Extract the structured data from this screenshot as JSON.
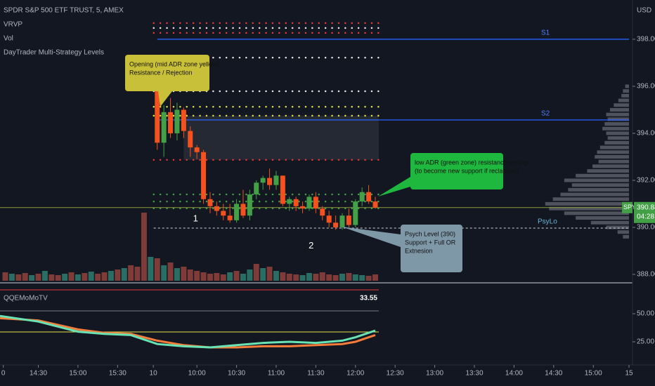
{
  "chart_data": {
    "type": "candlestick",
    "title": "SPDR S&P 500 ETF TRUST, 5, AMEX",
    "indicators": [
      "VRVP",
      "Vol",
      "DayTrader Multi-Strategy Levels"
    ],
    "currency": "USD",
    "xlim": [
      -23.8,
      71.4
    ],
    "xticks": [
      {
        "value": -23.3,
        "label": "0"
      },
      {
        "value": -18,
        "label": "14:30"
      },
      {
        "value": -12,
        "label": "15:00"
      },
      {
        "value": -6,
        "label": "15:30"
      },
      {
        "value": -0.6,
        "label": "10"
      },
      {
        "value": 6,
        "label": "10:00"
      },
      {
        "value": 12,
        "label": "10:30"
      },
      {
        "value": 18,
        "label": "11:00"
      },
      {
        "value": 24,
        "label": "11:30"
      },
      {
        "value": 30,
        "label": "12:00"
      },
      {
        "value": 36,
        "label": "12:30"
      },
      {
        "value": 42,
        "label": "13:00"
      },
      {
        "value": 48,
        "label": "13:30"
      },
      {
        "value": 54,
        "label": "14:00"
      },
      {
        "value": 60,
        "label": "14:30"
      },
      {
        "value": 66,
        "label": "15:00"
      },
      {
        "value": 71.4,
        "label": "15"
      }
    ],
    "ylim": [
      387.73,
      399.67
    ],
    "yticks": [
      {
        "value": 388,
        "label": "388.00"
      },
      {
        "value": 390,
        "label": "390.00"
      },
      {
        "value": 392,
        "label": "392.00"
      },
      {
        "value": 394,
        "label": "394.00"
      },
      {
        "value": 396,
        "label": "396.00"
      },
      {
        "value": 398,
        "label": "398.00"
      }
    ],
    "up_color": "#43a047",
    "down_color": "#f4511e",
    "x": [
      0,
      1,
      2,
      3,
      4,
      5,
      6,
      7,
      8,
      9,
      10,
      11,
      12,
      13,
      14,
      15,
      16,
      17,
      18,
      19,
      20,
      21,
      22,
      23,
      24,
      25,
      26,
      27,
      28,
      29,
      30,
      31,
      32,
      33
    ],
    "open": [
      395.9,
      393.6,
      394.9,
      394.0,
      395.0,
      394.1,
      393.4,
      393.2,
      391.2,
      390.9,
      390.7,
      390.5,
      390.3,
      391.0,
      390.5,
      391.4,
      391.9,
      392.1,
      391.8,
      392.2,
      391.0,
      391.2,
      390.9,
      390.8,
      391.3,
      390.8,
      390.5,
      390.2,
      390.0,
      390.5,
      390.1,
      391.1,
      391.5,
      391.1
    ],
    "high": [
      396.0,
      395.2,
      395.5,
      395.3,
      395.1,
      394.3,
      393.5,
      393.3,
      391.5,
      391.1,
      391.0,
      391.0,
      391.2,
      391.6,
      391.6,
      392.0,
      392.2,
      392.5,
      392.4,
      392.2,
      391.3,
      391.3,
      391.1,
      391.4,
      391.5,
      390.9,
      390.7,
      390.5,
      390.6,
      390.8,
      391.2,
      391.7,
      391.8,
      391.3
    ],
    "low": [
      393.3,
      393.0,
      393.8,
      393.7,
      393.8,
      393.0,
      392.9,
      391.0,
      390.6,
      390.5,
      390.3,
      390.2,
      390.2,
      390.4,
      390.3,
      391.2,
      391.6,
      391.6,
      391.6,
      390.9,
      390.7,
      390.7,
      390.6,
      390.7,
      390.6,
      390.3,
      390.0,
      389.9,
      389.9,
      390.0,
      390.0,
      390.9,
      391.0,
      390.8
    ],
    "close": [
      393.6,
      394.9,
      394.0,
      395.0,
      394.1,
      393.4,
      393.2,
      391.2,
      390.9,
      390.7,
      390.5,
      390.3,
      391.0,
      390.5,
      391.4,
      391.9,
      392.1,
      391.8,
      392.2,
      391.0,
      391.2,
      390.9,
      390.8,
      391.3,
      390.8,
      390.5,
      390.2,
      390.0,
      390.5,
      390.1,
      391.1,
      391.5,
      391.1,
      390.84
    ],
    "last_price": {
      "symbol": "SPY",
      "value": 390.84,
      "countdown": "04:28",
      "color": "#43a047"
    },
    "volume": {
      "x": [
        -23,
        -22,
        -21,
        -20,
        -19,
        -18,
        -17,
        -16,
        -15,
        -14,
        -13,
        -12,
        -11,
        -10,
        -9,
        -8,
        -7,
        -6,
        -5,
        -4,
        -3,
        -2,
        -1,
        0,
        1,
        2,
        3,
        4,
        5,
        6,
        7,
        8,
        9,
        10,
        11,
        12,
        13,
        14,
        15,
        16,
        17,
        18,
        19,
        20,
        21,
        22,
        23,
        24,
        25,
        26,
        27,
        28,
        29,
        30,
        31,
        32,
        33
      ],
      "values": [
        12,
        10,
        9,
        11,
        8,
        10,
        14,
        9,
        8,
        10,
        12,
        9,
        11,
        13,
        10,
        12,
        14,
        16,
        18,
        22,
        20,
        97,
        34,
        32,
        22,
        26,
        18,
        20,
        16,
        14,
        12,
        10,
        11,
        9,
        12,
        14,
        10,
        16,
        24,
        18,
        20,
        14,
        12,
        10,
        9,
        8,
        11,
        10,
        12,
        9,
        8,
        10,
        11,
        9,
        8,
        7,
        9
      ],
      "colors": [
        "#7e3b38",
        "#2a6d62",
        "#7e3b38",
        "#7e3b38",
        "#2a6d62",
        "#7e3b38",
        "#2a6d62",
        "#7e3b38",
        "#7e3b38",
        "#2a6d62",
        "#7e3b38",
        "#2a6d62",
        "#7e3b38",
        "#2a6d62",
        "#7e3b38",
        "#7e3b38",
        "#2a6d62",
        "#7e3b38",
        "#2a6d62",
        "#7e3b38",
        "#7e3b38",
        "#7e3b38",
        "#2a6d62",
        "#7e3b38",
        "#2a6d62",
        "#7e3b38",
        "#2a6d62",
        "#7e3b38",
        "#7e3b38",
        "#7e3b38",
        "#7e3b38",
        "#7e3b38",
        "#7e3b38",
        "#7e3b38",
        "#2a6d62",
        "#7e3b38",
        "#2a6d62",
        "#2a6d62",
        "#7e3b38",
        "#2a6d62",
        "#7e3b38",
        "#2a6d62",
        "#7e3b38",
        "#7e3b38",
        "#7e3b38",
        "#2a6d62",
        "#2a6d62",
        "#7e3b38",
        "#7e3b38",
        "#7e3b38",
        "#7e3b38",
        "#2a6d62",
        "#7e3b38",
        "#2a6d62",
        "#2a6d62",
        "#7e3b38",
        "#7e3b38"
      ],
      "ylim": [
        0,
        100
      ]
    },
    "profile": {
      "prices": [
        396.0,
        395.8,
        395.6,
        395.4,
        395.2,
        395.0,
        394.8,
        394.6,
        394.4,
        394.2,
        394.0,
        393.8,
        393.6,
        393.4,
        393.2,
        393.0,
        392.8,
        392.6,
        392.4,
        392.2,
        392.0,
        391.8,
        391.6,
        391.4,
        391.2,
        391.0,
        390.8,
        390.6,
        390.4,
        390.2,
        390.0,
        389.8,
        389.6
      ],
      "values": [
        5,
        8,
        10,
        14,
        20,
        25,
        30,
        28,
        32,
        35,
        30,
        28,
        32,
        38,
        42,
        45,
        40,
        48,
        55,
        70,
        85,
        75,
        80,
        90,
        100,
        110,
        105,
        85,
        70,
        50,
        30,
        15,
        8
      ],
      "xlim": [
        0,
        120
      ],
      "color": "#6b6e78"
    },
    "levels": [
      {
        "value": 398.69,
        "color": "#e53935"
      },
      {
        "value": 398.48,
        "color": "#e8e8e8"
      },
      {
        "value": 398.27,
        "color": "#e53935"
      },
      {
        "value": 397.22,
        "color": "#e8e8e8"
      },
      {
        "value": 395.79,
        "color": "#e8e8e8"
      },
      {
        "value": 395.13,
        "color": "#e5e04a"
      },
      {
        "value": 394.75,
        "color": "#e5e04a"
      },
      {
        "value": 392.87,
        "color": "#e53935"
      },
      {
        "value": 391.4,
        "color": "#43a047"
      },
      {
        "value": 391.1,
        "color": "#43a047"
      },
      {
        "value": 390.81,
        "color": "#43a047"
      }
    ],
    "zone": {
      "from": 392.87,
      "to": 394.75
    },
    "lines": [
      {
        "name": "S1",
        "value": 398.0,
        "color": "#2962ff"
      },
      {
        "name": "S2",
        "value": 394.57,
        "color": "#2962ff"
      },
      {
        "name": "PsyLo",
        "value": 389.97,
        "color": "#d1d4dc"
      }
    ],
    "annotations": [
      "1",
      "2"
    ],
    "callouts": [
      {
        "lines": [
          "Opening (mid ADR zone yellow)",
          "Resistance / Rejection"
        ],
        "color": "#c9c03a"
      },
      {
        "lines": [
          "low ADR (green zone) resistance testing",
          "(to become new support if reclaimed)"
        ],
        "color": "#1fb83e"
      },
      {
        "lines": [
          "Psych Level (390)",
          "Support + Full OR",
          "Extnesion"
        ],
        "color": "#7f98a8"
      }
    ],
    "oscillator": {
      "name": "QQEMoMoTV",
      "last_value": 33.55,
      "ylim": [
        4.4,
        76.25
      ],
      "yticks": [
        {
          "value": 25,
          "label": "25.00"
        },
        {
          "value": 50,
          "label": "50.00"
        }
      ],
      "ref_lines": [
        {
          "value": 71.25,
          "color": "#e53935"
        },
        {
          "value": 52.5,
          "color": "#787b86"
        },
        {
          "value": 33.75,
          "color": "#e5e04a"
        }
      ],
      "series": [
        {
          "name": "fast",
          "color": "#f57c3a",
          "x": [
            -23.8,
            -18,
            -12,
            -8,
            -4,
            0,
            4,
            8,
            12,
            16,
            20,
            24,
            28,
            30,
            32,
            33
          ],
          "values": [
            46,
            44,
            36,
            33,
            32,
            26,
            22,
            20,
            20,
            21,
            21,
            22,
            23,
            25,
            29,
            31
          ]
        },
        {
          "name": "slow",
          "color": "#69e3b4",
          "x": [
            -23.8,
            -18,
            -12,
            -8,
            -4,
            0,
            4,
            8,
            12,
            16,
            20,
            24,
            28,
            30,
            32,
            33
          ],
          "values": [
            48,
            43,
            34,
            32,
            31,
            23,
            21,
            20,
            22,
            24,
            25,
            24,
            26,
            29,
            33,
            35
          ]
        }
      ]
    }
  }
}
